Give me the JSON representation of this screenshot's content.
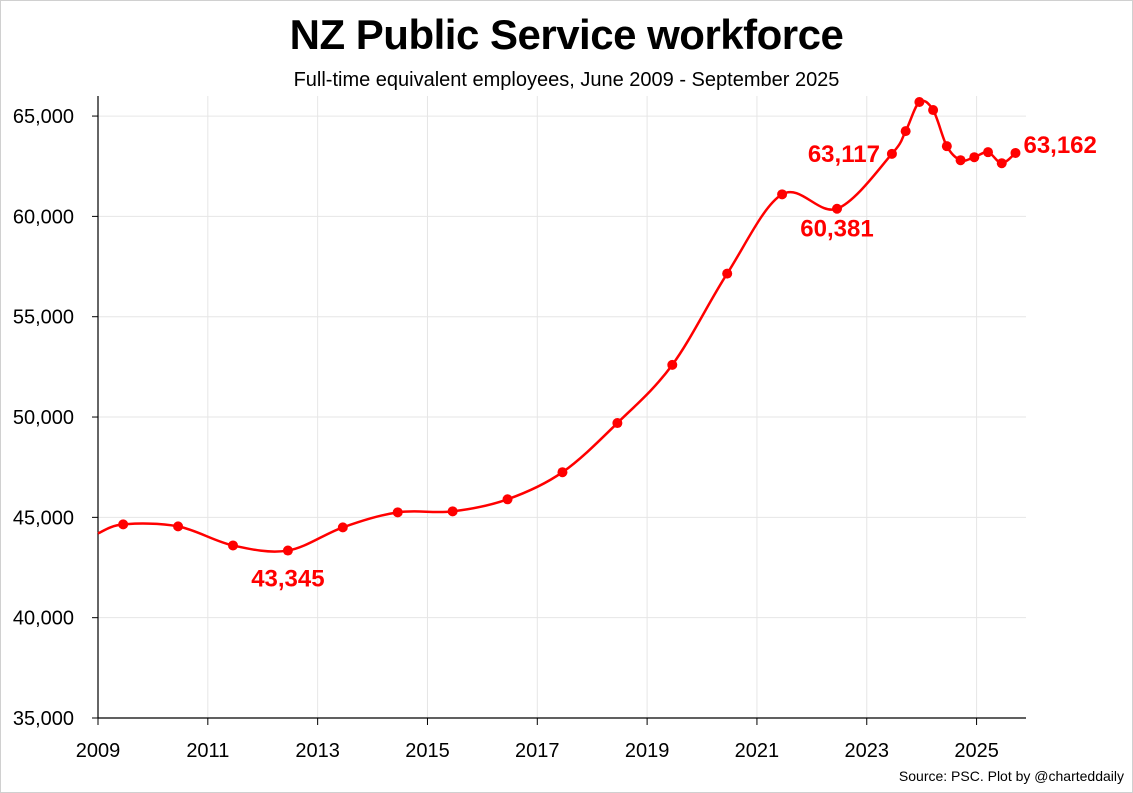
{
  "chart_data": {
    "type": "line",
    "title": "NZ Public Service workforce",
    "subtitle": "Full-time equivalent employees, June 2009 - September 2025",
    "source": "Source: PSC.  Plot by @charteddaily",
    "xlabel": "",
    "ylabel": "",
    "xlim": [
      2009,
      2025.9
    ],
    "ylim": [
      35000,
      66000
    ],
    "x_ticks": [
      "2009",
      "2011",
      "2013",
      "2015",
      "2017",
      "2019",
      "2021",
      "2023",
      "2025"
    ],
    "y_ticks": [
      "35,000",
      "40,000",
      "45,000",
      "50,000",
      "55,000",
      "60,000",
      "65,000"
    ],
    "y_tick_values": [
      35000,
      40000,
      45000,
      50000,
      55000,
      60000,
      65000
    ],
    "x_tick_values": [
      2009,
      2011,
      2013,
      2015,
      2017,
      2019,
      2021,
      2023,
      2025
    ],
    "grid": true,
    "color": "#ff0000",
    "series": [
      {
        "points": [
          {
            "x": "Jun 2009",
            "y": 44650
          },
          {
            "x": "Jun 2010",
            "y": 44550
          },
          {
            "x": "Jun 2011",
            "y": 43600
          },
          {
            "x": "Jun 2012",
            "y": 43345
          },
          {
            "x": "Jun 2013",
            "y": 44500
          },
          {
            "x": "Jun 2014",
            "y": 45250
          },
          {
            "x": "Jun 2015",
            "y": 45300
          },
          {
            "x": "Jun 2016",
            "y": 45900
          },
          {
            "x": "Jun 2017",
            "y": 47250
          },
          {
            "x": "Jun 2018",
            "y": 49700
          },
          {
            "x": "Jun 2019",
            "y": 52600
          },
          {
            "x": "Jun 2020",
            "y": 57150
          },
          {
            "x": "Jun 2021",
            "y": 61100
          },
          {
            "x": "Jun 2022",
            "y": 60381
          },
          {
            "x": "Jun 2023",
            "y": 63117
          },
          {
            "x": "Sep 2023",
            "y": 64250
          },
          {
            "x": "Dec 2023",
            "y": 65700
          },
          {
            "x": "Mar 2024",
            "y": 65300
          },
          {
            "x": "Jun 2024",
            "y": 63500
          },
          {
            "x": "Sep 2024",
            "y": 62800
          },
          {
            "x": "Dec 2024",
            "y": 62950
          },
          {
            "x": "Mar 2025",
            "y": 63200
          },
          {
            "x": "Jun 2025",
            "y": 62650
          },
          {
            "x": "Sep 2025",
            "y": 63162
          }
        ]
      }
    ],
    "annotations": [
      {
        "text": "43,345",
        "point": "Jun 2012",
        "position": "below"
      },
      {
        "text": "60,381",
        "point": "Jun 2022",
        "position": "below"
      },
      {
        "text": "63,117",
        "point": "Jun 2023",
        "position": "left"
      },
      {
        "text": "63,162",
        "point": "Sep 2025",
        "position": "right"
      }
    ]
  }
}
